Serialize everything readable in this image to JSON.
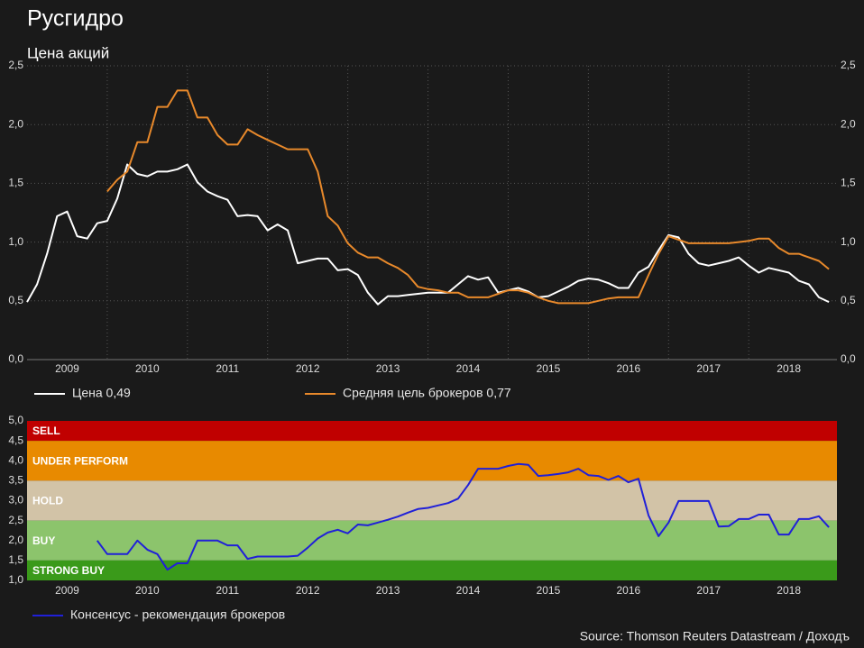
{
  "chart_data": [
    {
      "type": "line",
      "title": "Русгидро",
      "subtitle": "Цена акций",
      "x": [
        2009,
        2009.125,
        2009.25,
        2009.375,
        2009.5,
        2009.625,
        2009.75,
        2009.875,
        2010,
        2010.125,
        2010.25,
        2010.375,
        2010.5,
        2010.625,
        2010.75,
        2010.875,
        2011,
        2011.125,
        2011.25,
        2011.375,
        2011.5,
        2011.625,
        2011.75,
        2011.875,
        2012,
        2012.125,
        2012.25,
        2012.375,
        2012.5,
        2012.625,
        2012.75,
        2012.875,
        2013,
        2013.125,
        2013.25,
        2013.375,
        2013.5,
        2013.625,
        2013.75,
        2013.875,
        2014,
        2014.125,
        2014.25,
        2014.375,
        2014.5,
        2014.625,
        2014.75,
        2014.875,
        2015,
        2015.125,
        2015.25,
        2015.375,
        2015.5,
        2015.625,
        2015.75,
        2015.875,
        2016,
        2016.125,
        2016.25,
        2016.375,
        2016.5,
        2016.625,
        2016.75,
        2016.875,
        2017,
        2017.125,
        2017.25,
        2017.375,
        2017.5,
        2017.625,
        2017.75,
        2017.875,
        2018,
        2018.125,
        2018.25,
        2018.375,
        2018.5,
        2018.625,
        2018.75,
        2018.875,
        2019
      ],
      "series": [
        {
          "name": "Цена 0,49",
          "color": "#ffffff",
          "values": [
            0.49,
            0.64,
            0.9,
            1.22,
            1.26,
            1.05,
            1.03,
            1.16,
            1.18,
            1.37,
            1.66,
            1.58,
            1.56,
            1.6,
            1.6,
            1.62,
            1.66,
            1.51,
            1.43,
            1.39,
            1.36,
            1.22,
            1.23,
            1.22,
            1.1,
            1.15,
            1.1,
            0.82,
            0.84,
            0.86,
            0.86,
            0.76,
            0.77,
            0.72,
            0.57,
            0.47,
            0.54,
            0.54,
            0.55,
            0.56,
            0.57,
            0.57,
            0.57,
            0.64,
            0.71,
            0.68,
            0.7,
            0.57,
            0.59,
            0.61,
            0.58,
            0.53,
            0.54,
            0.58,
            0.62,
            0.67,
            0.69,
            0.68,
            0.65,
            0.61,
            0.61,
            0.74,
            0.79,
            0.93,
            1.06,
            1.04,
            0.9,
            0.82,
            0.8,
            0.82,
            0.84,
            0.87,
            0.8,
            0.74,
            0.78,
            0.76,
            0.74,
            0.67,
            0.64,
            0.53,
            0.49
          ]
        },
        {
          "name": "Средняя цель брокеров 0,77",
          "color": "#e8892b",
          "values": [
            null,
            null,
            null,
            null,
            null,
            null,
            null,
            null,
            1.43,
            1.53,
            1.6,
            1.85,
            1.85,
            2.15,
            2.15,
            2.29,
            2.29,
            2.06,
            2.06,
            1.91,
            1.83,
            1.83,
            1.96,
            1.91,
            1.87,
            1.83,
            1.79,
            1.79,
            1.79,
            1.6,
            1.22,
            1.14,
            0.99,
            0.91,
            0.87,
            0.87,
            0.82,
            0.78,
            0.72,
            0.62,
            0.6,
            0.59,
            0.57,
            0.57,
            0.53,
            0.53,
            0.53,
            0.56,
            0.59,
            0.59,
            0.57,
            0.53,
            0.5,
            0.48,
            0.48,
            0.48,
            0.48,
            0.5,
            0.52,
            0.53,
            0.53,
            0.53,
            0.72,
            0.9,
            1.05,
            1.02,
            0.99,
            0.99,
            0.99,
            0.99,
            0.99,
            1.0,
            1.01,
            1.03,
            1.03,
            0.95,
            0.9,
            0.9,
            0.87,
            0.84,
            0.77
          ]
        }
      ],
      "xlim": [
        2009,
        2019.1
      ],
      "xticks": [
        {
          "value": 2009.5,
          "label": "2009"
        },
        {
          "value": 2010.5,
          "label": "2010"
        },
        {
          "value": 2011.5,
          "label": "2011"
        },
        {
          "value": 2012.5,
          "label": "2012"
        },
        {
          "value": 2013.5,
          "label": "2013"
        },
        {
          "value": 2014.5,
          "label": "2014"
        },
        {
          "value": 2015.5,
          "label": "2015"
        },
        {
          "value": 2016.5,
          "label": "2016"
        },
        {
          "value": 2017.5,
          "label": "2017"
        },
        {
          "value": 2018.5,
          "label": "2018"
        }
      ],
      "xgrid": [
        2010,
        2011,
        2012,
        2013,
        2014,
        2015,
        2016,
        2017,
        2018
      ],
      "ylim": [
        0,
        2.5
      ],
      "yticks": [
        {
          "value": 0,
          "label": "0,0"
        },
        {
          "value": 0.5,
          "label": "0,5"
        },
        {
          "value": 1,
          "label": "1,0"
        },
        {
          "value": 1.5,
          "label": "1,5"
        },
        {
          "value": 2,
          "label": "2,0"
        },
        {
          "value": 2.5,
          "label": "2,5"
        }
      ],
      "y2lim": [
        0,
        2.5
      ],
      "y2ticks": [
        {
          "value": 0,
          "label": "0,0"
        },
        {
          "value": 0.5,
          "label": "0,5"
        },
        {
          "value": 1,
          "label": "1,0"
        },
        {
          "value": 1.5,
          "label": "1,5"
        },
        {
          "value": 2,
          "label": "2,0"
        },
        {
          "value": 2.5,
          "label": "2,5"
        }
      ],
      "grid": true
    },
    {
      "type": "line",
      "x": [
        2009,
        2009.125,
        2009.25,
        2009.375,
        2009.5,
        2009.625,
        2009.75,
        2009.875,
        2010,
        2010.125,
        2010.25,
        2010.375,
        2010.5,
        2010.625,
        2010.75,
        2010.875,
        2011,
        2011.125,
        2011.25,
        2011.375,
        2011.5,
        2011.625,
        2011.75,
        2011.875,
        2012,
        2012.125,
        2012.25,
        2012.375,
        2012.5,
        2012.625,
        2012.75,
        2012.875,
        2013,
        2013.125,
        2013.25,
        2013.375,
        2013.5,
        2013.625,
        2013.75,
        2013.875,
        2014,
        2014.125,
        2014.25,
        2014.375,
        2014.5,
        2014.625,
        2014.75,
        2014.875,
        2015,
        2015.125,
        2015.25,
        2015.375,
        2015.5,
        2015.625,
        2015.75,
        2015.875,
        2016,
        2016.125,
        2016.25,
        2016.375,
        2016.5,
        2016.625,
        2016.75,
        2016.875,
        2017,
        2017.125,
        2017.25,
        2017.375,
        2017.5,
        2017.625,
        2017.75,
        2017.875,
        2018,
        2018.125,
        2018.25,
        2018.375,
        2018.5,
        2018.625,
        2018.75,
        2018.875,
        2019
      ],
      "series": [
        {
          "name": "Консенсус - рекомендация брокеров",
          "color": "#2020d8",
          "values": [
            null,
            null,
            null,
            null,
            null,
            null,
            null,
            2.0,
            1.66,
            1.66,
            1.66,
            2.0,
            1.77,
            1.66,
            1.27,
            1.43,
            1.43,
            2.0,
            2.0,
            2.0,
            1.88,
            1.88,
            1.54,
            1.6,
            1.6,
            1.6,
            1.6,
            1.62,
            1.82,
            2.05,
            2.2,
            2.27,
            2.18,
            2.4,
            2.38,
            2.45,
            2.52,
            2.6,
            2.7,
            2.79,
            2.82,
            2.88,
            2.94,
            3.05,
            3.39,
            3.8,
            3.8,
            3.8,
            3.87,
            3.92,
            3.9,
            3.62,
            3.64,
            3.67,
            3.71,
            3.8,
            3.64,
            3.62,
            3.52,
            3.62,
            3.46,
            3.55,
            2.63,
            2.11,
            2.45,
            2.99,
            2.99,
            2.99,
            2.99,
            2.35,
            2.36,
            2.54,
            2.54,
            2.65,
            2.65,
            2.15,
            2.15,
            2.54,
            2.54,
            2.61,
            2.33
          ]
        }
      ],
      "bands": [
        {
          "label": "SELL",
          "from": 4.5,
          "to": 5,
          "color": "#c00000"
        },
        {
          "label": "UNDER PERFORM",
          "from": 3.5,
          "to": 4.5,
          "color": "#e88a00"
        },
        {
          "label": "HOLD",
          "from": 2.5,
          "to": 3.5,
          "color": "#d2c3a7"
        },
        {
          "label": "BUY",
          "from": 1.5,
          "to": 2.5,
          "color": "#8cc46c"
        },
        {
          "label": "STRONG BUY",
          "from": 1,
          "to": 1.5,
          "color": "#3a9a1a"
        }
      ],
      "xlim": [
        2009,
        2019.1
      ],
      "xticks": [
        {
          "value": 2009.5,
          "label": "2009"
        },
        {
          "value": 2010.5,
          "label": "2010"
        },
        {
          "value": 2011.5,
          "label": "2011"
        },
        {
          "value": 2012.5,
          "label": "2012"
        },
        {
          "value": 2013.5,
          "label": "2013"
        },
        {
          "value": 2014.5,
          "label": "2014"
        },
        {
          "value": 2015.5,
          "label": "2015"
        },
        {
          "value": 2016.5,
          "label": "2016"
        },
        {
          "value": 2017.5,
          "label": "2017"
        },
        {
          "value": 2018.5,
          "label": "2018"
        }
      ],
      "ylim": [
        1,
        5
      ],
      "yticks": [
        {
          "value": 1,
          "label": "1,0"
        },
        {
          "value": 1.5,
          "label": "1,5"
        },
        {
          "value": 2,
          "label": "2,0"
        },
        {
          "value": 2.5,
          "label": "2,5"
        },
        {
          "value": 3,
          "label": "3,0"
        },
        {
          "value": 3.5,
          "label": "3,5"
        },
        {
          "value": 4,
          "label": "4,0"
        },
        {
          "value": 4.5,
          "label": "4,5"
        },
        {
          "value": 5,
          "label": "5,0"
        }
      ]
    }
  ],
  "source": "Source: Thomson Reuters Datastream / Доходъ"
}
